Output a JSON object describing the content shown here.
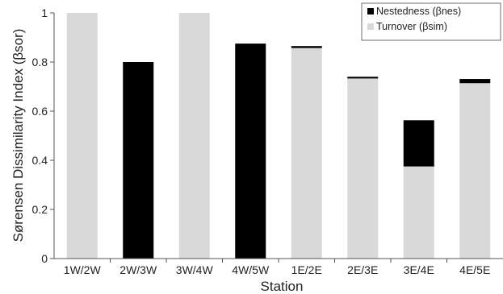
{
  "chart_data": {
    "type": "bar",
    "stacked": true,
    "categories": [
      "1W/2W",
      "2W/3W",
      "3W/4W",
      "4W/5W",
      "1E/2E",
      "2E/3E",
      "3E/4E",
      "4E/5E"
    ],
    "series": [
      {
        "name": "Turnover (βsim)",
        "color": "#d9d9d9",
        "values": [
          1.0,
          0.0,
          1.0,
          0.0,
          0.857,
          0.733,
          0.375,
          0.714
        ]
      },
      {
        "name": "Nestedness (βnes)",
        "color": "#000000",
        "values": [
          0.0,
          0.8,
          0.0,
          0.875,
          0.008,
          0.007,
          0.188,
          0.017
        ]
      }
    ],
    "xlabel": "Station",
    "ylabel": "Sørensen Dissimilarity Index (βsor)",
    "ylim": [
      0,
      1
    ],
    "yticks": [
      {
        "value": 0,
        "label": "0"
      },
      {
        "value": 0.2,
        "label": "0.2"
      },
      {
        "value": 0.4,
        "label": "0.4"
      },
      {
        "value": 0.6,
        "label": "0.6"
      },
      {
        "value": 0.8,
        "label": "0.8"
      },
      {
        "value": 1,
        "label": "1"
      }
    ],
    "grid": false,
    "legend": {
      "position": "top-right",
      "order": [
        1,
        0
      ]
    }
  }
}
